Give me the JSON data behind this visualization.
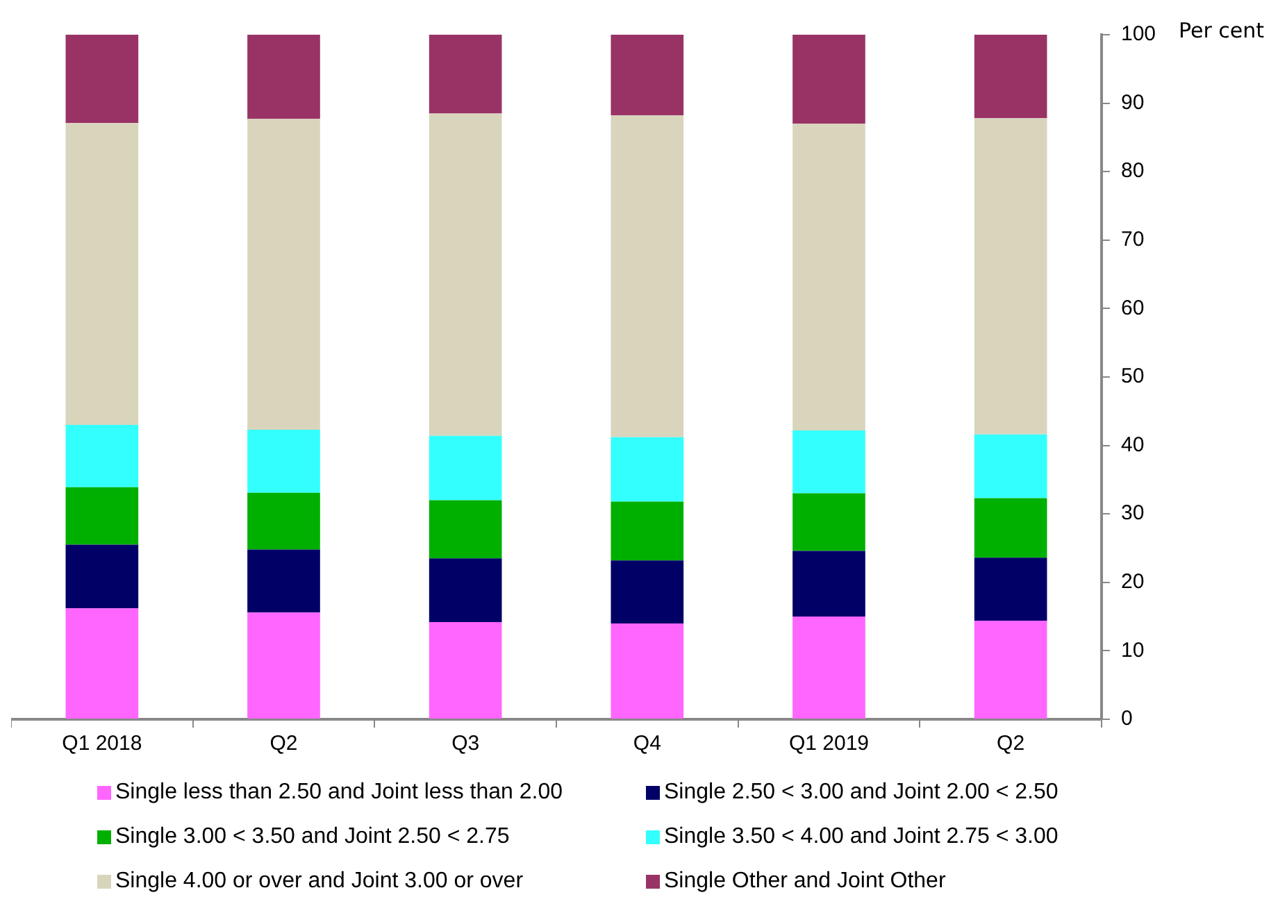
{
  "chart_data": {
    "type": "bar",
    "stacked": true,
    "ylabel": "Per cent",
    "categories": [
      "Q1 2018",
      "Q2",
      "Q3",
      "Q4",
      "Q1 2019",
      "Q2"
    ],
    "series": [
      {
        "name": "Single less than 2.50 and Joint less than 2.00",
        "color": "#ff66ff",
        "values": [
          16.2,
          15.6,
          14.2,
          14.0,
          15.0,
          14.4
        ]
      },
      {
        "name": "Single 2.50 < 3.00 and Joint 2.00 < 2.50",
        "color": "#000066",
        "values": [
          9.3,
          9.2,
          9.3,
          9.2,
          9.6,
          9.2
        ]
      },
      {
        "name": "Single 3.00 < 3.50 and Joint 2.50 < 2.75",
        "color": "#00b000",
        "values": [
          8.4,
          8.3,
          8.5,
          8.6,
          8.4,
          8.7
        ]
      },
      {
        "name": "Single 3.50 < 4.00 and Joint 2.75 < 3.00",
        "color": "#33ffff",
        "values": [
          9.1,
          9.2,
          9.4,
          9.4,
          9.2,
          9.3
        ]
      },
      {
        "name": "Single 4.00 or over and Joint 3.00 or over",
        "color": "#d8d5bc",
        "values": [
          44.1,
          45.4,
          47.1,
          47.0,
          44.8,
          46.2
        ]
      },
      {
        "name": "Single Other and Joint Other",
        "color": "#993366",
        "values": [
          12.9,
          12.3,
          11.5,
          11.8,
          13.0,
          12.2
        ]
      }
    ],
    "ylim": [
      0,
      100
    ],
    "yticks": [
      0,
      10,
      20,
      30,
      40,
      50,
      60,
      70,
      80,
      90,
      100
    ],
    "grid": false,
    "legend": "bottom"
  }
}
